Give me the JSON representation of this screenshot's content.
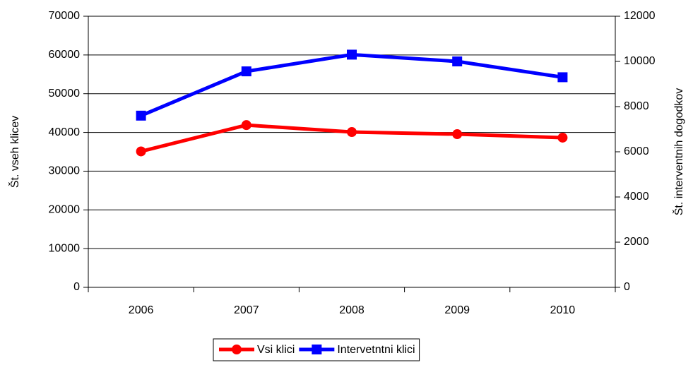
{
  "chart_data": {
    "type": "line",
    "categories": [
      "2006",
      "2007",
      "2008",
      "2009",
      "2010"
    ],
    "series": [
      {
        "name": "Vsi klici",
        "color": "#ff0000",
        "marker": "circle",
        "values": [
          35100,
          41900,
          40100,
          39550,
          38650
        ]
      },
      {
        "name": "Intervetntni klici",
        "color": "#0000ff",
        "marker": "square",
        "axis": "y2",
        "values": [
          7600,
          9560,
          10300,
          10000,
          9300
        ]
      }
    ],
    "ylabel": "Št. vseh klicev",
    "y2label": "Št. interventnih dogodkov",
    "ylim": [
      0,
      70000
    ],
    "yticks": [
      0,
      10000,
      20000,
      30000,
      40000,
      50000,
      60000,
      70000
    ],
    "y2lim": [
      0,
      12000
    ],
    "y2ticks": [
      0,
      2000,
      4000,
      6000,
      8000,
      10000,
      12000
    ],
    "grid": true,
    "legend": "bottom"
  }
}
